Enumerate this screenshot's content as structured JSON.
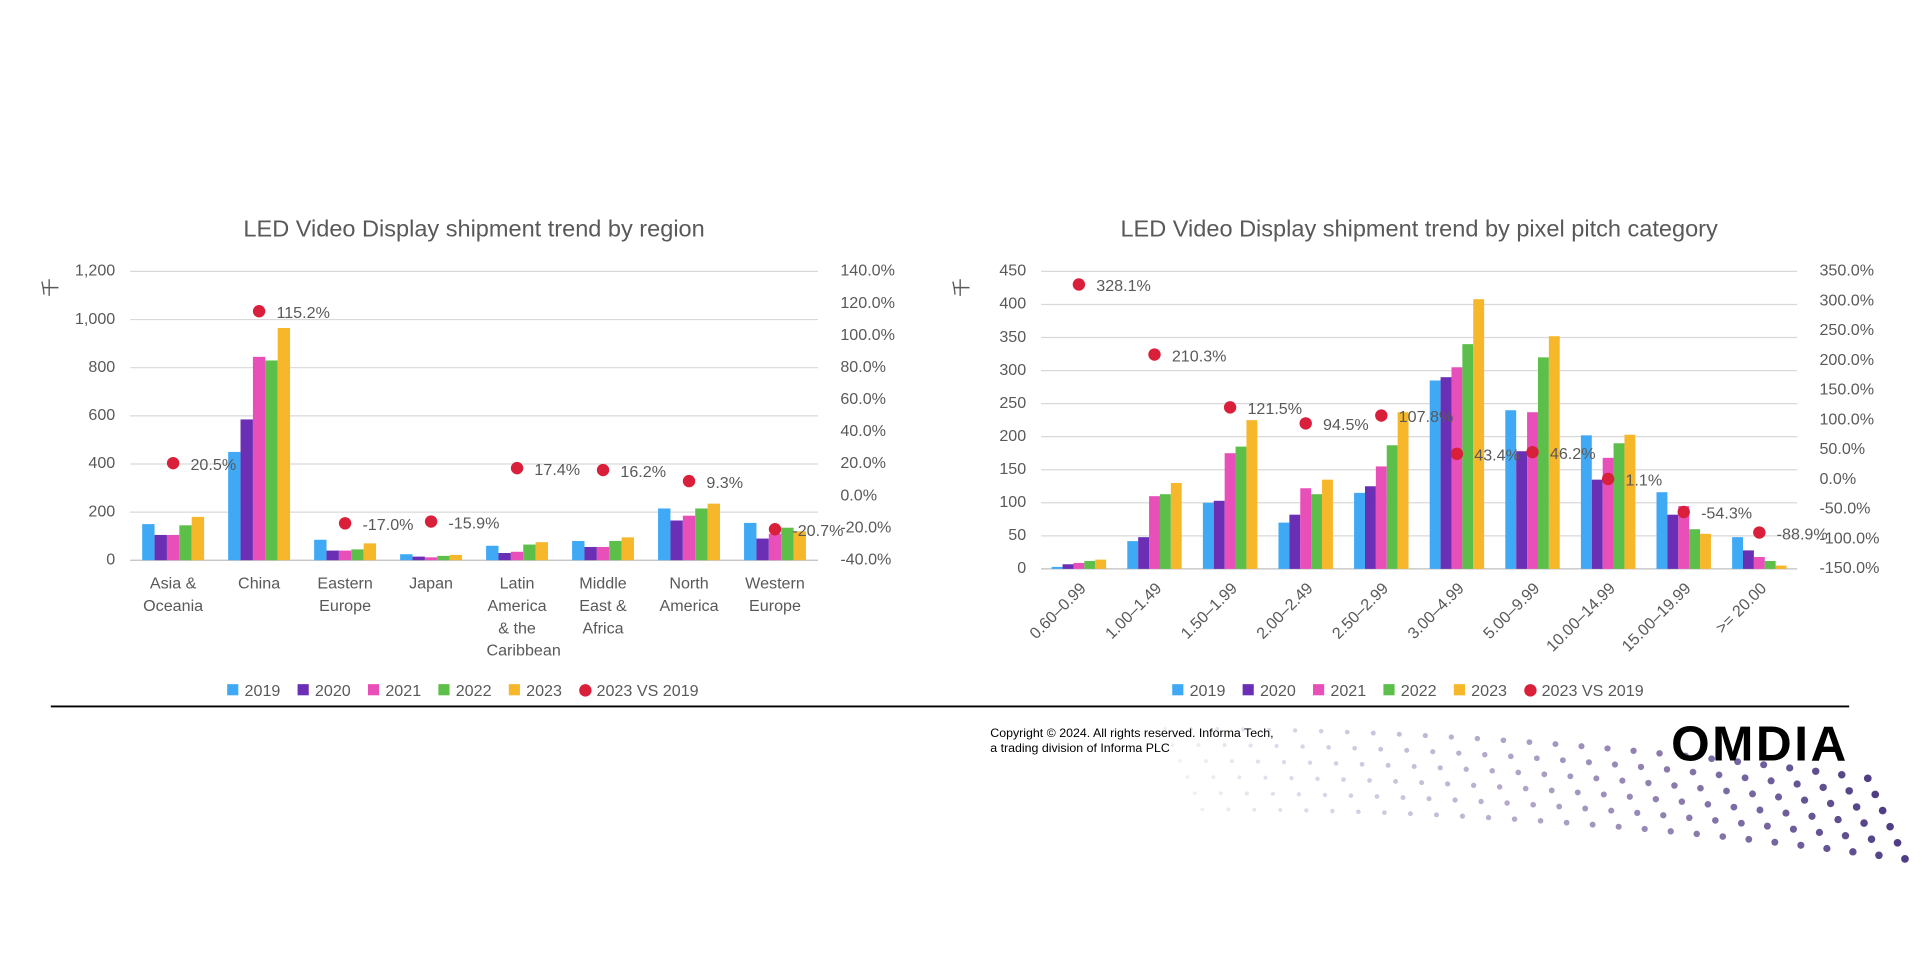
{
  "chart_data": [
    {
      "type": "bar",
      "title": "LED Video Display shipment trend by region",
      "y_label": "千",
      "categories": [
        "Asia & Oceania",
        "China",
        "Eastern Europe",
        "Japan",
        "Latin America & the Caribbean",
        "Middle East & Africa",
        "North America",
        "Western Europe"
      ],
      "series": [
        {
          "name": "2019",
          "color": "#3fa9f5",
          "values": [
            150,
            450,
            85,
            25,
            60,
            80,
            215,
            155
          ]
        },
        {
          "name": "2020",
          "color": "#6a2fb5",
          "values": [
            105,
            585,
            40,
            15,
            30,
            55,
            165,
            90
          ]
        },
        {
          "name": "2021",
          "color": "#e84fb8",
          "values": [
            105,
            845,
            40,
            12,
            35,
            55,
            185,
            110
          ]
        },
        {
          "name": "2022",
          "color": "#5cbf4a",
          "values": [
            145,
            830,
            45,
            18,
            65,
            80,
            215,
            135
          ]
        },
        {
          "name": "2023",
          "color": "#f7b72a",
          "values": [
            180,
            965,
            70,
            22,
            75,
            95,
            235,
            120
          ]
        },
        {
          "name": "2023 VS 2019",
          "color": "#d91f3a",
          "type": "scatter",
          "axis": "y2",
          "values": [
            20.5,
            115.2,
            -17.0,
            -15.9,
            17.4,
            16.2,
            9.3,
            -20.7
          ],
          "value_labels": [
            "20.5%",
            "115.2%",
            "-17.0%",
            "-15.9%",
            "17.4%",
            "16.2%",
            "9.3%",
            "-20.7%"
          ]
        }
      ],
      "ylim": [
        0,
        1200
      ],
      "yticks": [
        0,
        200,
        400,
        600,
        800,
        {
          "value": 1000,
          "label": "1,000"
        },
        {
          "value": 1200,
          "label": "1,200"
        }
      ],
      "y2lim": [
        -40,
        140
      ],
      "y2ticks": [
        {
          "value": -40,
          "label": "-40.0%"
        },
        {
          "value": -20,
          "label": "-20.0%"
        },
        {
          "value": 0,
          "label": "0.0%"
        },
        {
          "value": 20,
          "label": "20.0%"
        },
        {
          "value": 40,
          "label": "40.0%"
        },
        {
          "value": 60,
          "label": "60.0%"
        },
        {
          "value": 80,
          "label": "80.0%"
        },
        {
          "value": 100,
          "label": "100.0%"
        },
        {
          "value": 120,
          "label": "120.0%"
        },
        {
          "value": 140,
          "label": "140.0%"
        }
      ],
      "grid": true
    },
    {
      "type": "bar",
      "title": "LED Video Display shipment trend by pixel pitch category",
      "y_label": "千",
      "categories": [
        "0.60–0.99",
        "1.00–1.49",
        "1.50–1.99",
        "2.00–2.49",
        "2.50–2.99",
        "3.00–4.99",
        "5.00–9.99",
        "10.00–14.99",
        "15.00–19.99",
        ">= 20.00"
      ],
      "series": [
        {
          "name": "2019",
          "color": "#3fa9f5",
          "values": [
            3,
            42,
            100,
            70,
            115,
            285,
            240,
            202,
            116,
            48
          ]
        },
        {
          "name": "2020",
          "color": "#6a2fb5",
          "values": [
            7,
            48,
            103,
            82,
            125,
            290,
            178,
            135,
            82,
            28
          ]
        },
        {
          "name": "2021",
          "color": "#e84fb8",
          "values": [
            9,
            110,
            175,
            122,
            155,
            305,
            237,
            168,
            95,
            18
          ]
        },
        {
          "name": "2022",
          "color": "#5cbf4a",
          "values": [
            12,
            113,
            185,
            113,
            187,
            340,
            320,
            190,
            60,
            12
          ]
        },
        {
          "name": "2023",
          "color": "#f7b72a",
          "values": [
            14,
            130,
            225,
            135,
            237,
            408,
            352,
            203,
            53,
            5
          ]
        },
        {
          "name": "2023 VS 2019",
          "color": "#d91f3a",
          "type": "scatter",
          "axis": "y2",
          "values": [
            328.1,
            210.3,
            121.5,
            94.5,
            107.8,
            43.4,
            46.2,
            1.1,
            -54.3,
            -88.9
          ],
          "value_labels": [
            "328.1%",
            "210.3%",
            "121.5%",
            "94.5%",
            "107.8%",
            "43.4%",
            "46.2%",
            "1.1%",
            "-54.3%",
            "-88.9%"
          ]
        }
      ],
      "ylim": [
        0,
        450
      ],
      "yticks": [
        0,
        50,
        100,
        150,
        200,
        250,
        300,
        350,
        400,
        450
      ],
      "y2lim": [
        -150,
        350
      ],
      "y2ticks": [
        {
          "value": -150,
          "label": "-150.0%"
        },
        {
          "value": -100,
          "label": "-100.0%"
        },
        {
          "value": -50,
          "label": "-50.0%"
        },
        {
          "value": 0,
          "label": "0.0%"
        },
        {
          "value": 50,
          "label": "50.0%"
        },
        {
          "value": 100,
          "label": "100.0%"
        },
        {
          "value": 150,
          "label": "150.0%"
        },
        {
          "value": 200,
          "label": "200.0%"
        },
        {
          "value": 250,
          "label": "250.0%"
        },
        {
          "value": 300,
          "label": "300.0%"
        },
        {
          "value": 350,
          "label": "350.0%"
        }
      ],
      "grid": true
    }
  ],
  "footer": {
    "copyright": [
      "Copyright © 2024. All rights reserved. Informa Tech,",
      "a trading division of Informa PLC"
    ],
    "logo": "OMDIA"
  }
}
